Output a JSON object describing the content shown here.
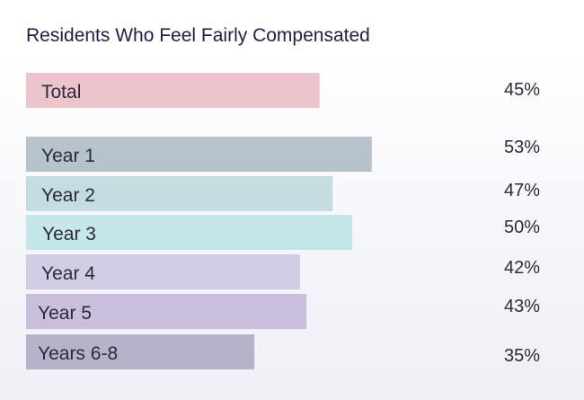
{
  "chart_data": {
    "type": "bar",
    "orientation": "horizontal",
    "title": "Residents Who Feel Fairly Compensated",
    "categories": [
      "Total",
      "Year 1",
      "Year 2",
      "Year 3",
      "Year 4",
      "Year 5",
      "Years 6-8"
    ],
    "values": [
      45,
      53,
      47,
      50,
      42,
      43,
      35
    ],
    "value_labels": [
      "45%",
      "53%",
      "47%",
      "50%",
      "42%",
      "43%",
      "35%"
    ],
    "unit": "%",
    "xlim": [
      0,
      100
    ],
    "grid": false,
    "legend": "none",
    "colors": [
      "#ecc5cc",
      "#b6c3cb",
      "#c3dce0",
      "#c5e7ea",
      "#d3cce5",
      "#c9bfdd",
      "#b8b1ca"
    ]
  }
}
